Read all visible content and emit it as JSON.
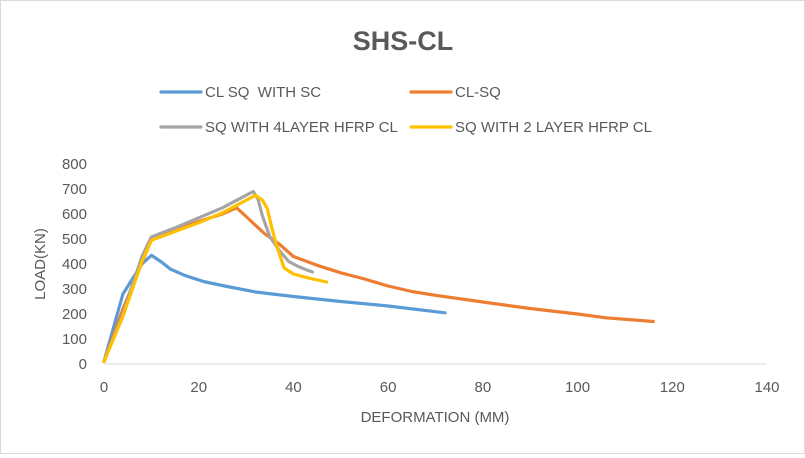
{
  "chart_data": {
    "type": "line",
    "title": "SHS-CL",
    "xlabel": "DEFORMATION (MM)",
    "ylabel": "LOAD(KN)",
    "xlim": [
      0,
      140
    ],
    "ylim": [
      0,
      800
    ],
    "xticks": [
      "0",
      "20",
      "40",
      "60",
      "80",
      "100",
      "120",
      "140"
    ],
    "yticks": [
      "0",
      "100",
      "200",
      "300",
      "400",
      "500",
      "600",
      "700",
      "800"
    ],
    "grid": false,
    "legend_position": "top",
    "series": [
      {
        "name": "CL SQ  WITH SC",
        "color": "#5b9bd5",
        "points": [
          [
            0,
            10
          ],
          [
            4,
            280
          ],
          [
            8,
            400
          ],
          [
            10,
            435
          ],
          [
            12,
            410
          ],
          [
            14,
            380
          ],
          [
            17,
            355
          ],
          [
            21,
            330
          ],
          [
            26,
            310
          ],
          [
            32,
            288
          ],
          [
            40,
            270
          ],
          [
            50,
            250
          ],
          [
            60,
            232
          ],
          [
            72,
            205
          ]
        ]
      },
      {
        "name": "CL-SQ",
        "color": "#ed7d31",
        "points": [
          [
            0,
            10
          ],
          [
            4,
            220
          ],
          [
            9,
            450
          ],
          [
            10,
            500
          ],
          [
            15,
            535
          ],
          [
            20,
            570
          ],
          [
            25,
            600
          ],
          [
            28,
            625
          ],
          [
            30,
            590
          ],
          [
            32,
            555
          ],
          [
            34,
            520
          ],
          [
            37,
            480
          ],
          [
            40,
            430
          ],
          [
            45,
            395
          ],
          [
            50,
            365
          ],
          [
            55,
            340
          ],
          [
            60,
            312
          ],
          [
            65,
            290
          ],
          [
            70,
            275
          ],
          [
            80,
            248
          ],
          [
            90,
            222
          ],
          [
            100,
            200
          ],
          [
            106,
            185
          ],
          [
            112,
            176
          ],
          [
            116,
            170
          ]
        ]
      },
      {
        "name": "SQ WITH 4LAYER HFRP CL",
        "color": "#a5a5a5",
        "points": [
          [
            0,
            10
          ],
          [
            4,
            200
          ],
          [
            8,
            430
          ],
          [
            10,
            508
          ],
          [
            15,
            545
          ],
          [
            20,
            585
          ],
          [
            25,
            625
          ],
          [
            29,
            665
          ],
          [
            31.5,
            690
          ],
          [
            32.5,
            660
          ],
          [
            33.5,
            590
          ],
          [
            35,
            510
          ],
          [
            37,
            455
          ],
          [
            39,
            410
          ],
          [
            41,
            390
          ],
          [
            43,
            375
          ],
          [
            44,
            368
          ]
        ]
      },
      {
        "name": "SQ WITH 2 LAYER HFRP CL",
        "color": "#ffc000",
        "points": [
          [
            0,
            10
          ],
          [
            4,
            190
          ],
          [
            8,
            410
          ],
          [
            10,
            495
          ],
          [
            15,
            530
          ],
          [
            20,
            565
          ],
          [
            25,
            605
          ],
          [
            30,
            655
          ],
          [
            32,
            675
          ],
          [
            33.5,
            655
          ],
          [
            34.5,
            620
          ],
          [
            35.5,
            540
          ],
          [
            36.5,
            470
          ],
          [
            38,
            385
          ],
          [
            40,
            360
          ],
          [
            43,
            345
          ],
          [
            47,
            328
          ]
        ]
      }
    ]
  }
}
